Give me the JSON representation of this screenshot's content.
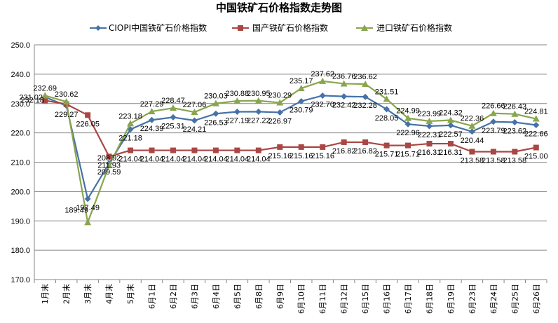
{
  "colors": {
    "ciopi": "#4572A7",
    "domestic": "#AA4643",
    "imported": "#89A54E",
    "grid": "#868686",
    "axis": "#868686"
  },
  "chart_data": {
    "type": "line",
    "title": "中国铁矿石价格指数走势图",
    "xlabel": "",
    "ylabel": "",
    "ylim": [
      170,
      250
    ],
    "yticks": [
      "170.0",
      "180.0",
      "190.0",
      "200.0",
      "210.0",
      "220.0",
      "230.0",
      "240.0",
      "250.0"
    ],
    "grid": "horizontal",
    "legend_position": "top",
    "categories": [
      "1月末",
      "2月末",
      "3月末",
      "4月末",
      "5月末",
      "6月1日",
      "6月2日",
      "6月3日",
      "6月4日",
      "6月5日",
      "6月8日",
      "6月9日",
      "6月10日",
      "6月11日",
      "6月12日",
      "6月15日",
      "6月16日",
      "6月17日",
      "6月18日",
      "6月19日",
      "6月23日",
      "6月24日",
      "6月25日",
      "6月26日"
    ],
    "series": [
      {
        "name": "CIOPI中国铁矿石价格指数",
        "marker": "diamond",
        "color": "#4572A7",
        "values": [
          232.18,
          229.27,
          197.49,
          209.59,
          221.18,
          224.39,
          225.31,
          224.21,
          226.53,
          227.19,
          227.22,
          226.97,
          230.79,
          232.7,
          232.42,
          232.28,
          228.05,
          222.96,
          222.31,
          222.57,
          220.44,
          223.79,
          223.62,
          222.66
        ],
        "labels": [
          "232.18",
          "229.27",
          "197.49",
          "209.59",
          "221.18",
          "224.39",
          "225.31",
          "224.21",
          "226.53",
          "227.19",
          "227.22",
          "226.97",
          "230.79",
          "232.70",
          "232.42",
          "232.28",
          "228.05",
          "222.96",
          "222.31",
          "222.57",
          "220.44",
          "223.79",
          "223.62",
          "222.66"
        ]
      },
      {
        "name": "国产铁矿石价格指数",
        "marker": "square",
        "color": "#AA4643",
        "values": [
          231.02,
          229.8,
          226.05,
          211.93,
          214.04,
          214.04,
          214.04,
          214.04,
          214.04,
          214.04,
          214.04,
          215.16,
          215.16,
          215.16,
          216.82,
          216.82,
          215.71,
          215.71,
          216.31,
          216.31,
          213.58,
          213.58,
          213.58,
          215.0
        ],
        "labels": [
          "231.02",
          "",
          "226.05",
          "211.93",
          "214.04",
          "214.04",
          "214.04",
          "214.04",
          "214.04",
          "214.04",
          "214.04",
          "215.16",
          "215.16",
          "215.16",
          "216.82",
          "216.82",
          "215.71",
          "215.71",
          "216.31",
          "216.31",
          "213.58",
          "213.58",
          "213.58",
          "215.00"
        ]
      },
      {
        "name": "进口铁矿石价格指数",
        "marker": "triangle",
        "color": "#89A54E",
        "values": [
          232.69,
          230.62,
          189.49,
          208.92,
          223.18,
          227.29,
          228.47,
          227.06,
          230.03,
          230.88,
          230.95,
          230.29,
          235.17,
          237.62,
          236.76,
          236.62,
          231.51,
          224.99,
          223.99,
          224.32,
          222.36,
          226.66,
          226.43,
          224.81
        ],
        "labels": [
          "232.69",
          "230.62",
          "189.49",
          "208.92",
          "223.18",
          "227.29",
          "228.47",
          "227.06",
          "230.03",
          "230.88",
          "230.95",
          "230.29",
          "235.17",
          "237.62",
          "236.76",
          "236.62",
          "231.51",
          "224.99",
          "223.99",
          "224.32",
          "222.36",
          "226.66",
          "226.43",
          "224.81"
        ]
      }
    ]
  }
}
